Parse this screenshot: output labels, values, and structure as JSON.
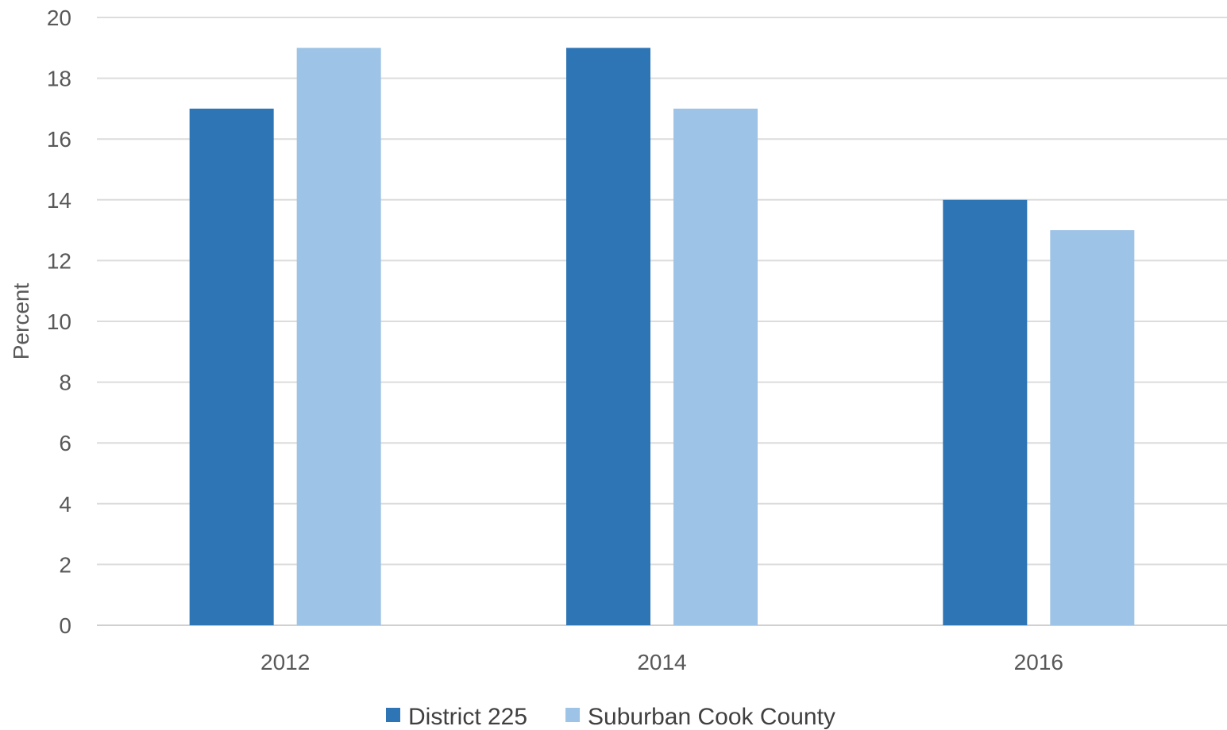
{
  "chart_data": {
    "type": "bar",
    "categories": [
      "2012",
      "2014",
      "2016"
    ],
    "series": [
      {
        "name": "District 225",
        "values": [
          17,
          19,
          14
        ],
        "color": "#2E75B6"
      },
      {
        "name": "Suburban Cook County",
        "values": [
          19,
          17,
          13
        ],
        "color": "#9DC3E6"
      }
    ],
    "ylabel": "Percent",
    "xlabel": "",
    "ylim": [
      0,
      20
    ],
    "yticks": [
      0,
      2,
      4,
      6,
      8,
      10,
      12,
      14,
      16,
      18,
      20
    ],
    "grid": true,
    "legend_position": "bottom"
  }
}
